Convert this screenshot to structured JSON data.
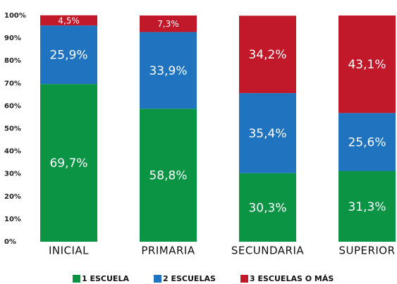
{
  "chart_data": {
    "type": "stacked_bar",
    "categories": [
      "INICIAL",
      "PRIMARIA",
      "SECUNDARIA",
      "SUPERIOR"
    ],
    "series": [
      {
        "name": "1 ESCUELA",
        "color": "#0a9444",
        "values": [
          69.7,
          58.8,
          30.3,
          31.3
        ],
        "value_labels": [
          "69,7%",
          "58,8%",
          "30,3%",
          "31,3%"
        ]
      },
      {
        "name": "2 ESCUELAS",
        "color": "#1f73bf",
        "values": [
          25.9,
          33.9,
          35.4,
          25.6
        ],
        "value_labels": [
          "25,9%",
          "33,9%",
          "35,4%",
          "25,6%"
        ]
      },
      {
        "name": "3 ESCUELAS O MÁS",
        "color": "#c1182a",
        "values": [
          4.5,
          7.3,
          34.2,
          43.1
        ],
        "value_labels": [
          "4,5%",
          "7,3%",
          "34,2%",
          "43,1%"
        ]
      }
    ],
    "ylim": [
      0,
      100
    ],
    "yticks": [
      {
        "value": 0,
        "label": "0%"
      },
      {
        "value": 10,
        "label": "10%"
      },
      {
        "value": 20,
        "label": "20%"
      },
      {
        "value": 30,
        "label": "30%"
      },
      {
        "value": 40,
        "label": "40%"
      },
      {
        "value": 50,
        "label": "50%"
      },
      {
        "value": 60,
        "label": "60%"
      },
      {
        "value": 70,
        "label": "70%"
      },
      {
        "value": 80,
        "label": "80%"
      },
      {
        "value": 90,
        "label": "90%"
      },
      {
        "value": 100,
        "label": "100%"
      }
    ],
    "grid": false
  }
}
